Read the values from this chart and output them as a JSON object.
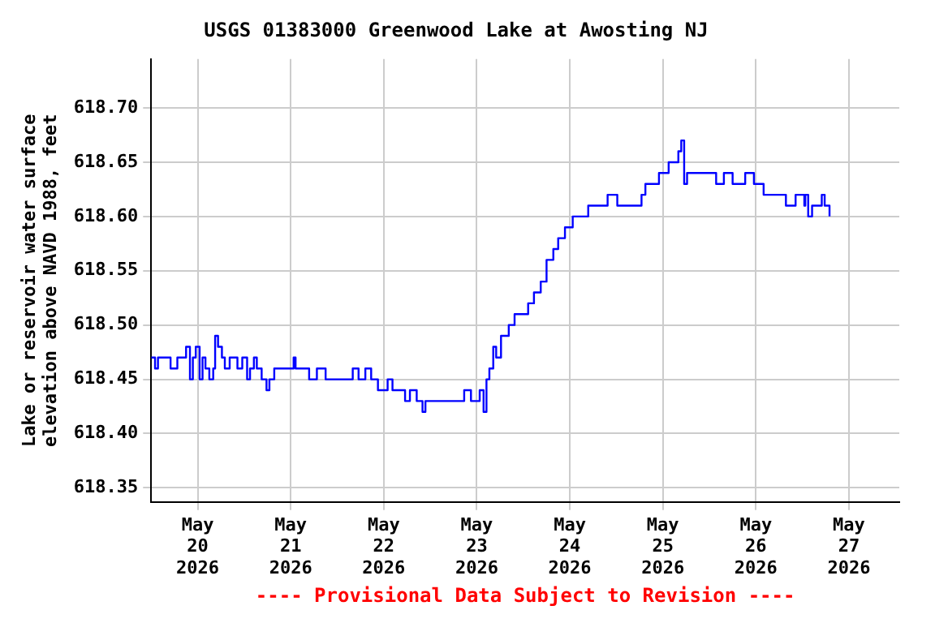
{
  "chart_data": {
    "type": "step",
    "title": "USGS 01383000 Greenwood Lake at Awosting NJ",
    "ylabel": "Lake or reservoir water surface elevation above NAVD 1988, feet",
    "annotations": [
      "---- Provisional Data Subject to Revision ----"
    ],
    "xlim": [
      "2026-05-19T12:00",
      "2026-05-27T13:00"
    ],
    "xticks": [
      {
        "value": "2026-05-20",
        "label": "May 20 2026"
      },
      {
        "value": "2026-05-21",
        "label": "May 21 2026"
      },
      {
        "value": "2026-05-22",
        "label": "May 22 2026"
      },
      {
        "value": "2026-05-23",
        "label": "May 23 2026"
      },
      {
        "value": "2026-05-24",
        "label": "May 24 2026"
      },
      {
        "value": "2026-05-25",
        "label": "May 25 2026"
      },
      {
        "value": "2026-05-26",
        "label": "May 26 2026"
      },
      {
        "value": "2026-05-27",
        "label": "May 27 2026"
      }
    ],
    "ylim": [
      618.337,
      618.745
    ],
    "yticks": [
      618.35,
      {
        "value": 618.4,
        "label": "618.40"
      },
      618.45,
      {
        "value": 618.5,
        "label": "618.50"
      },
      618.55,
      {
        "value": 618.6,
        "label": "618.60"
      },
      618.65,
      {
        "value": 618.7,
        "label": "618.70"
      }
    ],
    "grid": true,
    "legend": false,
    "marker": "none",
    "line_style": "solid",
    "series": [
      {
        "color": "#0000ff",
        "x": [
          "2026-05-19T12:00",
          "2026-05-19T13:00",
          "2026-05-19T13:45",
          "2026-05-19T16:15",
          "2026-05-19T17:00",
          "2026-05-19T18:45",
          "2026-05-19T21:00",
          "2026-05-19T22:00",
          "2026-05-19T22:45",
          "2026-05-19T23:30",
          "2026-05-20T00:30",
          "2026-05-20T01:15",
          "2026-05-20T02:00",
          "2026-05-20T03:00",
          "2026-05-20T04:00",
          "2026-05-20T04:30",
          "2026-05-20T05:15",
          "2026-05-20T06:15",
          "2026-05-20T07:00",
          "2026-05-20T08:15",
          "2026-05-20T10:15",
          "2026-05-20T11:30",
          "2026-05-20T12:45",
          "2026-05-20T13:30",
          "2026-05-20T14:30",
          "2026-05-20T15:15",
          "2026-05-20T16:30",
          "2026-05-20T17:45",
          "2026-05-20T18:30",
          "2026-05-20T19:45",
          "2026-05-21T00:45",
          "2026-05-21T01:15",
          "2026-05-21T04:45",
          "2026-05-21T06:45",
          "2026-05-21T09:00",
          "2026-05-21T15:30",
          "2026-05-21T16:00",
          "2026-05-21T17:30",
          "2026-05-21T19:15",
          "2026-05-21T20:45",
          "2026-05-21T22:30",
          "2026-05-22T01:00",
          "2026-05-22T02:15",
          "2026-05-22T05:30",
          "2026-05-22T06:45",
          "2026-05-22T08:30",
          "2026-05-22T10:00",
          "2026-05-22T10:45",
          "2026-05-22T19:45",
          "2026-05-22T20:45",
          "2026-05-22T22:30",
          "2026-05-23T00:45",
          "2026-05-23T01:45",
          "2026-05-23T02:30",
          "2026-05-23T03:15",
          "2026-05-23T04:15",
          "2026-05-23T05:00",
          "2026-05-23T06:15",
          "2026-05-23T08:15",
          "2026-05-23T09:45",
          "2026-05-23T12:30",
          "2026-05-23T13:15",
          "2026-05-23T14:45",
          "2026-05-23T16:30",
          "2026-05-23T18:00",
          "2026-05-23T19:45",
          "2026-05-23T21:00",
          "2026-05-23T22:45",
          "2026-05-24T00:45",
          "2026-05-24T03:15",
          "2026-05-24T04:45",
          "2026-05-24T07:00",
          "2026-05-24T09:45",
          "2026-05-24T12:15",
          "2026-05-24T17:15",
          "2026-05-24T18:30",
          "2026-05-24T19:30",
          "2026-05-24T21:15",
          "2026-05-24T23:00",
          "2026-05-25T01:30",
          "2026-05-25T04:00",
          "2026-05-25T04:45",
          "2026-05-25T05:30",
          "2026-05-25T06:15",
          "2026-05-25T12:00",
          "2026-05-25T13:45",
          "2026-05-25T15:45",
          "2026-05-25T18:00",
          "2026-05-25T21:15",
          "2026-05-25T23:30",
          "2026-05-26T02:00",
          "2026-05-26T06:15",
          "2026-05-26T07:45",
          "2026-05-26T10:15",
          "2026-05-26T12:30",
          "2026-05-26T12:45",
          "2026-05-26T13:30",
          "2026-05-26T14:30",
          "2026-05-26T17:00",
          "2026-05-26T17:45",
          "2026-05-26T19:00"
        ],
        "values": [
          618.47,
          618.46,
          618.47,
          618.47,
          618.46,
          618.47,
          618.48,
          618.45,
          618.47,
          618.48,
          618.45,
          618.47,
          618.46,
          618.45,
          618.46,
          618.49,
          618.48,
          618.47,
          618.46,
          618.47,
          618.46,
          618.47,
          618.45,
          618.46,
          618.47,
          618.46,
          618.45,
          618.44,
          618.45,
          618.46,
          618.47,
          618.46,
          618.45,
          618.46,
          618.45,
          618.45,
          618.46,
          618.45,
          618.46,
          618.45,
          618.44,
          618.45,
          618.44,
          618.43,
          618.44,
          618.43,
          618.42,
          618.43,
          618.43,
          618.44,
          618.43,
          618.44,
          618.42,
          618.45,
          618.46,
          618.48,
          618.47,
          618.49,
          618.5,
          618.51,
          618.51,
          618.52,
          618.53,
          618.54,
          618.56,
          618.57,
          618.58,
          618.59,
          618.6,
          618.6,
          618.61,
          618.61,
          618.62,
          618.61,
          618.61,
          618.62,
          618.63,
          618.63,
          618.64,
          618.65,
          618.66,
          618.67,
          618.63,
          618.64,
          618.64,
          618.63,
          618.64,
          618.63,
          618.64,
          618.63,
          618.62,
          618.62,
          618.61,
          618.62,
          618.61,
          618.62,
          618.6,
          618.61,
          618.62,
          618.61,
          618.6
        ]
      }
    ]
  }
}
